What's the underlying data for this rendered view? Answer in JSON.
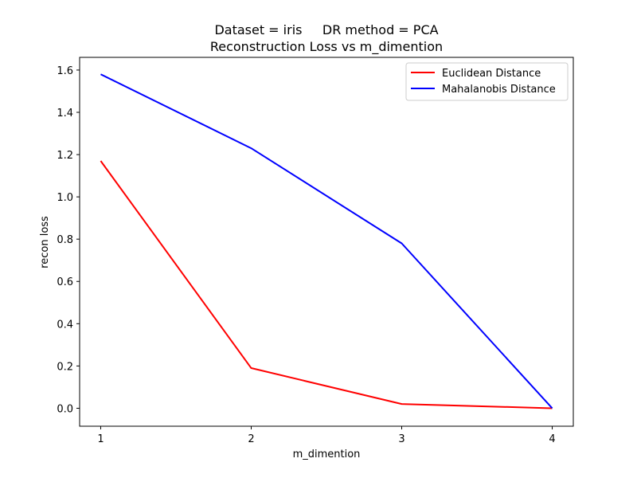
{
  "chart_data": {
    "type": "line",
    "title_line1": "Dataset = iris     DR method = PCA",
    "title_line2": "Reconstruction Loss vs m_dimention",
    "xlabel": "m_dimention",
    "ylabel": "recon loss",
    "x": [
      1,
      2,
      3,
      4
    ],
    "xticks": [
      "1",
      "2",
      "3",
      "4"
    ],
    "yticks": [
      "0.0",
      "0.2",
      "0.4",
      "0.6",
      "0.8",
      "1.0",
      "1.2",
      "1.4",
      "1.6"
    ],
    "xlim": [
      0.86,
      4.14
    ],
    "ylim": [
      -0.085,
      1.66
    ],
    "legend_position": "top-right",
    "grid": false,
    "series": [
      {
        "name": "Euclidean Distance",
        "color": "#ff0000",
        "values": [
          1.17,
          0.19,
          0.02,
          0.0
        ]
      },
      {
        "name": "Mahalanobis Distance",
        "color": "#0000ff",
        "values": [
          1.58,
          1.23,
          0.78,
          0.0
        ]
      }
    ]
  }
}
